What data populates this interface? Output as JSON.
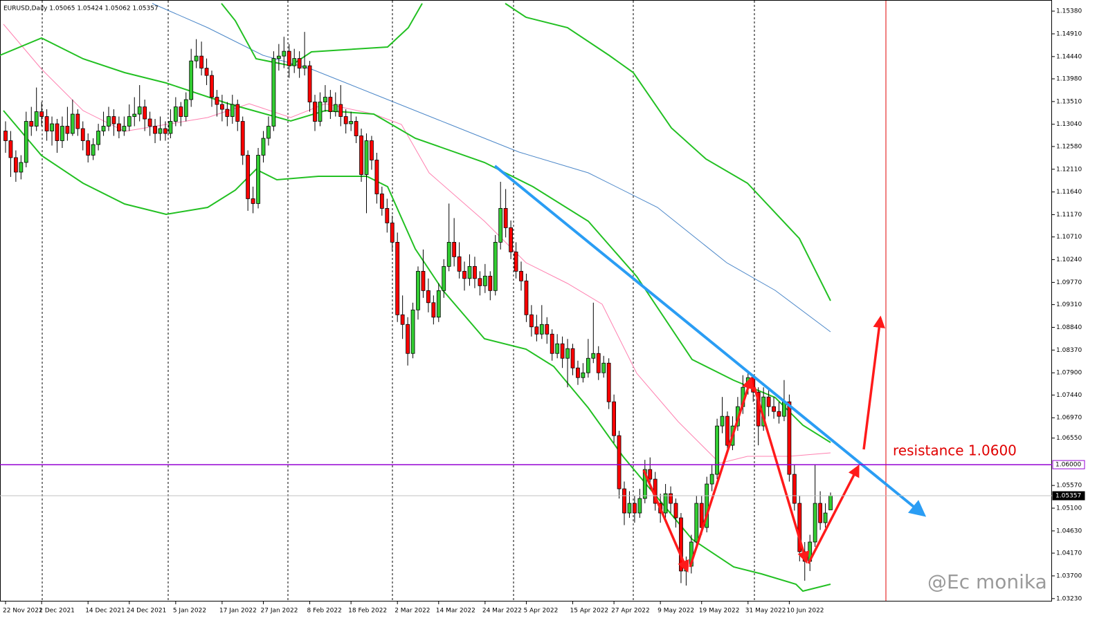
{
  "chart_data": {
    "type": "candlestick",
    "title": "EURUSD,Daily  1.05065 1.05424 1.05062 1.05357",
    "annotation": "resistance 1.0600",
    "watermark": "@Ec monika",
    "up_color": "#32cd32",
    "down_color": "#ff0000",
    "ylim": [
      1.0317,
      1.1561
    ],
    "yticks": [
      {
        "value": 1.1538,
        "label": "1.15380"
      },
      {
        "value": 1.1491,
        "label": "1.14910"
      },
      {
        "value": 1.1444,
        "label": "1.14440"
      },
      {
        "value": 1.1398,
        "label": "1.13980"
      },
      {
        "value": 1.1351,
        "label": "1.13510"
      },
      {
        "value": 1.1304,
        "label": "1.13040"
      },
      {
        "value": 1.1258,
        "label": "1.12580"
      },
      {
        "value": 1.1211,
        "label": "1.12110"
      },
      {
        "value": 1.1164,
        "label": "1.11640"
      },
      {
        "value": 1.1117,
        "label": "1.11170"
      },
      {
        "value": 1.1071,
        "label": "1.10710"
      },
      {
        "value": 1.1024,
        "label": "1.10240"
      },
      {
        "value": 1.0977,
        "label": "1.09770"
      },
      {
        "value": 1.0931,
        "label": "1.09310"
      },
      {
        "value": 1.0884,
        "label": "1.08840"
      },
      {
        "value": 1.0837,
        "label": "1.08370"
      },
      {
        "value": 1.079,
        "label": "1.07900"
      },
      {
        "value": 1.0744,
        "label": "1.07440"
      },
      {
        "value": 1.0697,
        "label": "1.06970"
      },
      {
        "value": 1.0655,
        "label": "1.06550"
      },
      {
        "value": 1.0557,
        "label": "1.05570"
      },
      {
        "value": 1.051,
        "label": "1.05100"
      },
      {
        "value": 1.0463,
        "label": "1.04630"
      },
      {
        "value": 1.0417,
        "label": "1.04170"
      },
      {
        "value": 1.037,
        "label": "1.03700"
      },
      {
        "value": 1.0323,
        "label": "1.03230"
      }
    ],
    "levels": [
      {
        "value": 1.06,
        "label": "1.06000",
        "color": "#9400d3"
      },
      {
        "value": 1.05357,
        "label": "1.05357",
        "color": "#c0c0c0"
      }
    ],
    "categories": [
      "22 Nov 2021",
      null,
      null,
      null,
      null,
      null,
      null,
      "2 Dec 2021",
      null,
      null,
      null,
      null,
      null,
      null,
      null,
      null,
      "14 Dec 2021",
      null,
      null,
      null,
      null,
      null,
      null,
      null,
      "24 Dec 2021",
      null,
      null,
      null,
      null,
      null,
      null,
      null,
      null,
      "5 Jan 2022",
      null,
      null,
      null,
      null,
      null,
      null,
      null,
      null,
      "17 Jan 2022",
      null,
      null,
      null,
      null,
      null,
      null,
      null,
      "27 Jan 2022",
      null,
      null,
      null,
      null,
      null,
      null,
      null,
      null,
      "8 Feb 2022",
      null,
      null,
      null,
      null,
      null,
      null,
      null,
      "18 Feb 2022",
      null,
      null,
      null,
      null,
      null,
      null,
      null,
      null,
      "2 Mar 2022",
      null,
      null,
      null,
      null,
      null,
      null,
      null,
      "14 Mar 2022",
      null,
      null,
      null,
      null,
      null,
      null,
      null,
      null,
      "24 Mar 2022",
      null,
      null,
      null,
      null,
      null,
      null,
      null,
      "5 Apr 2022",
      null,
      null,
      null,
      null,
      null,
      null,
      null,
      null,
      "15 Apr 2022",
      null,
      null,
      null,
      null,
      null,
      null,
      null,
      "27 Apr 2022",
      null,
      null,
      null,
      null,
      null,
      null,
      null,
      null,
      "9 May 2022",
      null,
      null,
      null,
      null,
      null,
      null,
      null,
      "19 May 2022",
      null,
      null,
      null,
      null,
      null,
      null,
      null,
      null,
      "31 May 2022",
      null,
      null,
      null,
      null,
      null,
      null,
      null,
      "10 Jun 2022",
      null,
      null,
      null,
      null,
      null,
      null,
      null,
      null
    ],
    "ohlc": [
      [
        1.129,
        1.131,
        1.1245,
        1.127
      ],
      [
        1.127,
        1.129,
        1.1195,
        1.1235
      ],
      [
        1.1235,
        1.125,
        1.1185,
        1.1205
      ],
      [
        1.1205,
        1.124,
        1.119,
        1.1225
      ],
      [
        1.1225,
        1.133,
        1.1215,
        1.131
      ],
      [
        1.131,
        1.134,
        1.128,
        1.13
      ],
      [
        1.13,
        1.138,
        1.129,
        1.133
      ],
      [
        1.133,
        1.135,
        1.13,
        1.132
      ],
      [
        1.132,
        1.1335,
        1.127,
        1.129
      ],
      [
        1.129,
        1.132,
        1.126,
        1.1305
      ],
      [
        1.1305,
        1.1315,
        1.1245,
        1.127
      ],
      [
        1.127,
        1.132,
        1.1255,
        1.13
      ],
      [
        1.13,
        1.134,
        1.127,
        1.1285
      ],
      [
        1.1285,
        1.1355,
        1.128,
        1.1325
      ],
      [
        1.1325,
        1.1335,
        1.128,
        1.1295
      ],
      [
        1.1295,
        1.131,
        1.125,
        1.127
      ],
      [
        1.127,
        1.1285,
        1.1225,
        1.124
      ],
      [
        1.124,
        1.1275,
        1.123,
        1.1262
      ],
      [
        1.1262,
        1.1305,
        1.125,
        1.129
      ],
      [
        1.129,
        1.133,
        1.128,
        1.13
      ],
      [
        1.13,
        1.134,
        1.129,
        1.132
      ],
      [
        1.132,
        1.1335,
        1.128,
        1.1305
      ],
      [
        1.1305,
        1.132,
        1.1275,
        1.129
      ],
      [
        1.129,
        1.132,
        1.128,
        1.13
      ],
      [
        1.13,
        1.1345,
        1.129,
        1.132
      ],
      [
        1.132,
        1.136,
        1.13,
        1.1325
      ],
      [
        1.1325,
        1.1385,
        1.131,
        1.134
      ],
      [
        1.134,
        1.1355,
        1.129,
        1.1315
      ],
      [
        1.1315,
        1.133,
        1.128,
        1.13
      ],
      [
        1.13,
        1.1315,
        1.1265,
        1.1285
      ],
      [
        1.1285,
        1.132,
        1.127,
        1.1295
      ],
      [
        1.1295,
        1.131,
        1.127,
        1.1285
      ],
      [
        1.1285,
        1.1335,
        1.1275,
        1.131
      ],
      [
        1.131,
        1.136,
        1.13,
        1.134
      ],
      [
        1.134,
        1.135,
        1.13,
        1.132
      ],
      [
        1.132,
        1.137,
        1.131,
        1.1355
      ],
      [
        1.1355,
        1.146,
        1.134,
        1.1435
      ],
      [
        1.1435,
        1.148,
        1.142,
        1.1445
      ],
      [
        1.1445,
        1.1475,
        1.1405,
        1.142
      ],
      [
        1.142,
        1.144,
        1.1385,
        1.1405
      ],
      [
        1.1405,
        1.1415,
        1.134,
        1.136
      ],
      [
        1.136,
        1.1375,
        1.132,
        1.1345
      ],
      [
        1.1345,
        1.1365,
        1.131,
        1.1335
      ],
      [
        1.1335,
        1.135,
        1.13,
        1.132
      ],
      [
        1.132,
        1.1365,
        1.1305,
        1.1345
      ],
      [
        1.1345,
        1.1355,
        1.129,
        1.131
      ],
      [
        1.131,
        1.132,
        1.122,
        1.124
      ],
      [
        1.124,
        1.125,
        1.1125,
        1.115
      ],
      [
        1.115,
        1.1175,
        1.112,
        1.114
      ],
      [
        1.114,
        1.1255,
        1.113,
        1.124
      ],
      [
        1.124,
        1.129,
        1.1225,
        1.1275
      ],
      [
        1.1275,
        1.132,
        1.126,
        1.13
      ],
      [
        1.13,
        1.1455,
        1.129,
        1.144
      ],
      [
        1.144,
        1.147,
        1.1415,
        1.1445
      ],
      [
        1.1445,
        1.1485,
        1.142,
        1.1455
      ],
      [
        1.1455,
        1.147,
        1.14,
        1.1425
      ],
      [
        1.1425,
        1.146,
        1.141,
        1.144
      ],
      [
        1.144,
        1.1455,
        1.14,
        1.142
      ],
      [
        1.142,
        1.1495,
        1.1405,
        1.1425
      ],
      [
        1.1425,
        1.1435,
        1.133,
        1.135
      ],
      [
        1.135,
        1.1365,
        1.129,
        1.131
      ],
      [
        1.131,
        1.137,
        1.13,
        1.135
      ],
      [
        1.135,
        1.1385,
        1.133,
        1.136
      ],
      [
        1.136,
        1.1375,
        1.1315,
        1.133
      ],
      [
        1.133,
        1.137,
        1.132,
        1.1345
      ],
      [
        1.1345,
        1.1385,
        1.13,
        1.132
      ],
      [
        1.132,
        1.1335,
        1.1285,
        1.1305
      ],
      [
        1.1305,
        1.133,
        1.129,
        1.131
      ],
      [
        1.131,
        1.132,
        1.1265,
        1.128
      ],
      [
        1.128,
        1.1295,
        1.1185,
        1.12
      ],
      [
        1.12,
        1.1285,
        1.112,
        1.127
      ],
      [
        1.127,
        1.128,
        1.121,
        1.123
      ],
      [
        1.123,
        1.1245,
        1.114,
        1.116
      ],
      [
        1.116,
        1.1175,
        1.1115,
        1.113
      ],
      [
        1.113,
        1.115,
        1.108,
        1.11
      ],
      [
        1.11,
        1.1115,
        1.104,
        1.106
      ],
      [
        1.106,
        1.108,
        1.0895,
        1.091
      ],
      [
        1.091,
        1.095,
        1.086,
        1.089
      ],
      [
        1.089,
        1.0905,
        1.0805,
        1.083
      ],
      [
        1.083,
        1.0935,
        1.082,
        1.092
      ],
      [
        1.092,
        1.101,
        1.09,
        1.1
      ],
      [
        1.1,
        1.1045,
        1.0945,
        1.096
      ],
      [
        1.096,
        1.0985,
        1.0915,
        1.0935
      ],
      [
        1.0935,
        1.095,
        1.089,
        1.0905
      ],
      [
        1.0905,
        1.0975,
        1.0895,
        1.096
      ],
      [
        1.096,
        1.1025,
        1.0945,
        1.101
      ],
      [
        1.101,
        1.114,
        1.1,
        1.106
      ],
      [
        1.106,
        1.111,
        1.101,
        1.103
      ],
      [
        1.103,
        1.106,
        1.0985,
        1.1
      ],
      [
        1.1,
        1.102,
        1.096,
        1.0985
      ],
      [
        1.0985,
        1.1035,
        1.097,
        1.101
      ],
      [
        1.101,
        1.103,
        1.0965,
        1.0985
      ],
      [
        1.0985,
        1.1,
        1.095,
        1.097
      ],
      [
        1.097,
        1.1015,
        1.0955,
        1.099
      ],
      [
        1.099,
        1.1,
        1.094,
        1.096
      ],
      [
        1.096,
        1.1075,
        1.095,
        1.106
      ],
      [
        1.106,
        1.1185,
        1.1045,
        1.113
      ],
      [
        1.113,
        1.117,
        1.107,
        1.109
      ],
      [
        1.109,
        1.1105,
        1.1025,
        1.104
      ],
      [
        1.104,
        1.106,
        1.0985,
        1.1
      ],
      [
        1.1,
        1.102,
        1.096,
        1.098
      ],
      [
        1.098,
        1.0995,
        1.0895,
        1.091
      ],
      [
        1.091,
        1.093,
        1.0865,
        1.0885
      ],
      [
        1.0885,
        1.091,
        1.0855,
        1.087
      ],
      [
        1.087,
        1.093,
        1.086,
        1.089
      ],
      [
        1.089,
        1.0905,
        1.085,
        1.087
      ],
      [
        1.087,
        1.088,
        1.0815,
        1.083
      ],
      [
        1.083,
        1.087,
        1.082,
        1.085
      ],
      [
        1.085,
        1.0865,
        1.08,
        1.082
      ],
      [
        1.082,
        1.086,
        1.076,
        1.084
      ],
      [
        1.084,
        1.085,
        1.0785,
        1.08
      ],
      [
        1.08,
        1.0815,
        1.0765,
        1.078
      ],
      [
        1.078,
        1.081,
        1.077,
        1.079
      ],
      [
        1.079,
        1.086,
        1.078,
        1.082
      ],
      [
        1.082,
        1.0935,
        1.081,
        1.083
      ],
      [
        1.083,
        1.0845,
        1.0775,
        1.079
      ],
      [
        1.079,
        1.0825,
        1.078,
        1.081
      ],
      [
        1.081,
        1.082,
        1.0715,
        1.073
      ],
      [
        1.073,
        1.0745,
        1.0645,
        1.066
      ],
      [
        1.066,
        1.067,
        1.053,
        1.055
      ],
      [
        1.055,
        1.0565,
        1.0475,
        1.05
      ],
      [
        1.05,
        1.0545,
        1.049,
        1.052
      ],
      [
        1.052,
        1.0535,
        1.048,
        1.05
      ],
      [
        1.05,
        1.055,
        1.049,
        1.053
      ],
      [
        1.053,
        1.061,
        1.052,
        1.059
      ],
      [
        1.059,
        1.0615,
        1.055,
        1.057
      ],
      [
        1.057,
        1.0585,
        1.0505,
        1.052
      ],
      [
        1.052,
        1.054,
        1.048,
        1.05
      ],
      [
        1.05,
        1.056,
        1.049,
        1.054
      ],
      [
        1.054,
        1.0555,
        1.05,
        1.052
      ],
      [
        1.052,
        1.053,
        1.047,
        1.049
      ],
      [
        1.049,
        1.05,
        1.0355,
        1.038
      ],
      [
        1.038,
        1.041,
        1.035,
        1.039
      ],
      [
        1.039,
        1.0455,
        1.0375,
        1.044
      ],
      [
        1.044,
        1.0535,
        1.043,
        1.052
      ],
      [
        1.052,
        1.0535,
        1.0455,
        1.047
      ],
      [
        1.047,
        1.0575,
        1.046,
        1.056
      ],
      [
        1.056,
        1.06,
        1.0545,
        1.058
      ],
      [
        1.058,
        1.0695,
        1.057,
        1.068
      ],
      [
        1.068,
        1.074,
        1.0665,
        1.07
      ],
      [
        1.07,
        1.071,
        1.0625,
        1.064
      ],
      [
        1.064,
        1.07,
        1.063,
        1.068
      ],
      [
        1.068,
        1.074,
        1.067,
        1.072
      ],
      [
        1.072,
        1.0785,
        1.0705,
        1.076
      ],
      [
        1.076,
        1.079,
        1.0745,
        1.078
      ],
      [
        1.078,
        1.0785,
        1.073,
        1.075
      ],
      [
        1.075,
        1.076,
        1.064,
        1.068
      ],
      [
        1.068,
        1.076,
        1.067,
        1.074
      ],
      [
        1.074,
        1.0755,
        1.07,
        1.072
      ],
      [
        1.072,
        1.074,
        1.0695,
        1.071
      ],
      [
        1.071,
        1.073,
        1.0685,
        1.07
      ],
      [
        1.07,
        1.0775,
        1.069,
        1.073
      ],
      [
        1.073,
        1.0745,
        1.0565,
        1.058
      ],
      [
        1.058,
        1.06,
        1.0505,
        1.052
      ],
      [
        1.052,
        1.0535,
        1.04,
        1.042
      ],
      [
        1.042,
        1.044,
        1.036,
        1.04
      ],
      [
        1.04,
        1.0455,
        1.038,
        1.044
      ],
      [
        1.044,
        1.06,
        1.043,
        1.052
      ],
      [
        1.052,
        1.0545,
        1.0465,
        1.048
      ],
      [
        1.048,
        1.052,
        1.047,
        1.05
      ],
      [
        1.05065,
        1.05424,
        1.05062,
        1.05357
      ]
    ]
  }
}
